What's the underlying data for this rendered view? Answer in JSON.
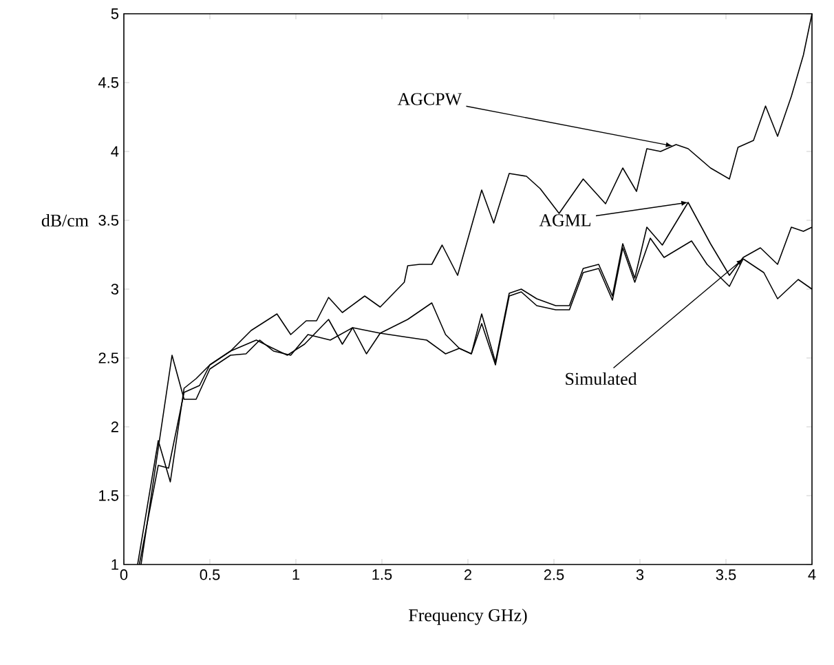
{
  "chart_data": {
    "type": "line",
    "xlabel": "Frequency GHz)",
    "ylabel": "dB/cm",
    "xlim": [
      0,
      4
    ],
    "ylim": [
      1,
      5
    ],
    "xticks": [
      0,
      0.5,
      1,
      1.5,
      2,
      2.5,
      3,
      3.5,
      4
    ],
    "yticks": [
      1,
      1.5,
      2,
      2.5,
      3,
      3.5,
      4,
      4.5,
      5
    ],
    "marker": "none",
    "line_style": "solid",
    "series": [
      {
        "color": "#000000",
        "x": [
          0.08,
          0.2,
          0.27,
          0.35,
          0.42,
          0.5,
          0.62,
          0.74,
          0.89,
          0.97,
          1.06,
          1.12,
          1.19,
          1.27,
          1.4,
          1.49,
          1.63,
          1.65,
          1.72,
          1.79,
          1.85,
          1.94,
          2.08,
          2.15,
          2.24,
          2.34,
          2.42,
          2.53,
          2.67,
          2.8,
          2.9,
          2.98,
          3.04,
          3.12,
          3.21,
          3.28,
          3.41,
          3.52,
          3.57,
          3.66,
          3.73,
          3.8,
          3.88,
          3.95,
          4.0
        ],
        "values": [
          1.0,
          1.9,
          1.6,
          2.28,
          2.35,
          2.45,
          2.55,
          2.7,
          2.82,
          2.67,
          2.77,
          2.77,
          2.94,
          2.83,
          2.95,
          2.87,
          3.05,
          3.17,
          3.18,
          3.18,
          3.32,
          3.1,
          3.72,
          3.48,
          3.84,
          3.82,
          3.73,
          3.55,
          3.8,
          3.62,
          3.88,
          3.71,
          4.02,
          4.0,
          4.05,
          4.02,
          3.88,
          3.8,
          4.03,
          4.08,
          4.33,
          4.11,
          4.4,
          4.7,
          5.0
        ]
      },
      {
        "color": "#000000",
        "x": [
          0.1,
          0.28,
          0.35,
          0.42,
          0.5,
          0.62,
          0.71,
          0.79,
          0.87,
          0.97,
          1.07,
          1.2,
          1.33,
          1.41,
          1.49,
          1.65,
          1.79,
          1.87,
          1.95,
          2.02,
          2.08,
          2.16,
          2.24,
          2.31,
          2.4,
          2.51,
          2.59,
          2.67,
          2.76,
          2.84,
          2.9,
          2.97,
          3.04,
          3.13,
          3.28,
          3.41,
          3.52,
          3.6,
          3.7,
          3.8,
          3.88,
          3.95,
          4.0
        ],
        "values": [
          1.0,
          2.52,
          2.2,
          2.2,
          2.42,
          2.52,
          2.53,
          2.63,
          2.55,
          2.52,
          2.67,
          2.63,
          2.72,
          2.53,
          2.68,
          2.78,
          2.9,
          2.67,
          2.57,
          2.53,
          2.82,
          2.47,
          2.97,
          3.0,
          2.93,
          2.88,
          2.88,
          3.15,
          3.18,
          2.95,
          3.33,
          3.08,
          3.45,
          3.32,
          3.63,
          3.33,
          3.1,
          3.23,
          3.3,
          3.18,
          3.45,
          3.42,
          3.45
        ]
      },
      {
        "color": "#000000",
        "x": [
          0.09,
          0.2,
          0.26,
          0.35,
          0.44,
          0.5,
          0.62,
          0.77,
          0.85,
          0.95,
          1.05,
          1.19,
          1.27,
          1.33,
          1.49,
          1.65,
          1.76,
          1.87,
          1.95,
          2.02,
          2.08,
          2.16,
          2.24,
          2.31,
          2.4,
          2.51,
          2.59,
          2.67,
          2.76,
          2.84,
          2.9,
          2.97,
          3.06,
          3.14,
          3.3,
          3.39,
          3.52,
          3.6,
          3.72,
          3.8,
          3.92,
          4.0
        ],
        "values": [
          1.0,
          1.72,
          1.7,
          2.25,
          2.3,
          2.45,
          2.55,
          2.63,
          2.58,
          2.52,
          2.6,
          2.78,
          2.6,
          2.72,
          2.68,
          2.65,
          2.63,
          2.53,
          2.57,
          2.53,
          2.75,
          2.45,
          2.95,
          2.98,
          2.88,
          2.85,
          2.85,
          3.12,
          3.15,
          2.92,
          3.3,
          3.05,
          3.37,
          3.23,
          3.35,
          3.18,
          3.02,
          3.22,
          3.12,
          2.93,
          3.07,
          3.0
        ]
      }
    ],
    "annotations": [
      {
        "text": "AGCPW",
        "x": 3.19,
        "y": 4.04
      },
      {
        "text": "AGML",
        "x": 3.28,
        "y": 3.63
      },
      {
        "text": "Simulated",
        "x": 3.6,
        "y": 3.22
      }
    ]
  }
}
